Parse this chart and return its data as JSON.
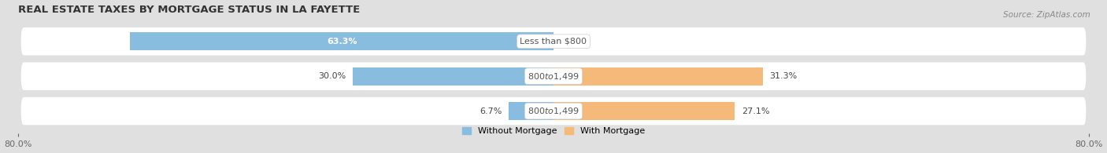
{
  "title": "REAL ESTATE TAXES BY MORTGAGE STATUS IN LA FAYETTE",
  "source": "Source: ZipAtlas.com",
  "categories": [
    "Less than $800",
    "$800 to $1,499",
    "$800 to $1,499"
  ],
  "without_mortgage": [
    63.3,
    30.0,
    6.7
  ],
  "with_mortgage": [
    0.0,
    31.3,
    27.1
  ],
  "xlim": 80.0,
  "bar_color_without": "#89BDE0",
  "bar_color_with": "#F5B97A",
  "bg_color": "#E0E0E0",
  "row_bg_color": "#FFFFFF",
  "bar_height": 0.52,
  "legend_without": "Without Mortgage",
  "legend_with": "With Mortgage",
  "title_fontsize": 9.5,
  "label_fontsize": 8,
  "tick_fontsize": 8,
  "source_fontsize": 7.5
}
